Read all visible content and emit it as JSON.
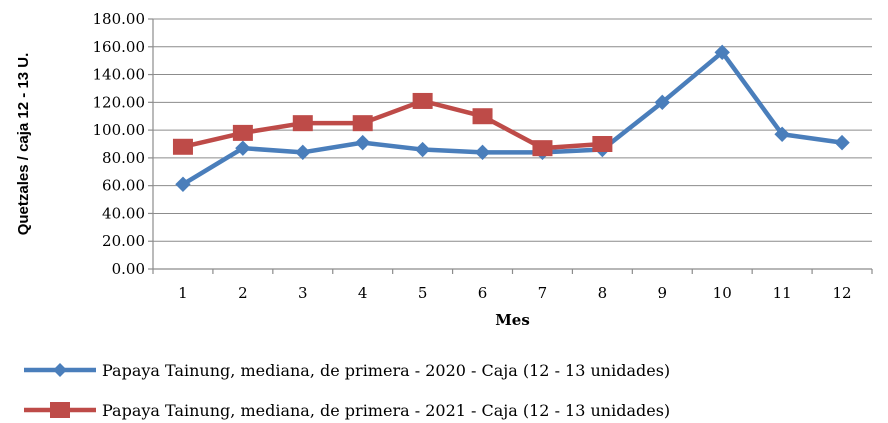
{
  "chart_data": {
    "type": "line",
    "categories": [
      "1",
      "2",
      "3",
      "4",
      "5",
      "6",
      "7",
      "8",
      "9",
      "10",
      "11",
      "12"
    ],
    "series": [
      {
        "name": "Papaya Tainung, mediana, de primera - 2020 - Caja (12 - 13 unidades)",
        "color": "#4a7ebb",
        "marker": "diamond",
        "values": [
          61,
          87,
          84,
          91,
          86,
          84,
          84,
          86,
          120,
          156,
          97,
          91
        ]
      },
      {
        "name": "Papaya Tainung, mediana, de primera - 2021 - Caja (12 - 13 unidades)",
        "color": "#be4b48",
        "marker": "square",
        "values": [
          88,
          98,
          105,
          105,
          121,
          110,
          87,
          90,
          null,
          null,
          null,
          null
        ]
      }
    ],
    "xlabel": "Mes",
    "ylabel": "Quetzales / caja 12 - 13 U.",
    "ylim": [
      0,
      180
    ],
    "yticks": [
      "0.00",
      "20.00",
      "40.00",
      "60.00",
      "80.00",
      "100.00",
      "120.00",
      "140.00",
      "160.00",
      "180.00"
    ],
    "grid": true,
    "legend": "bottom"
  }
}
